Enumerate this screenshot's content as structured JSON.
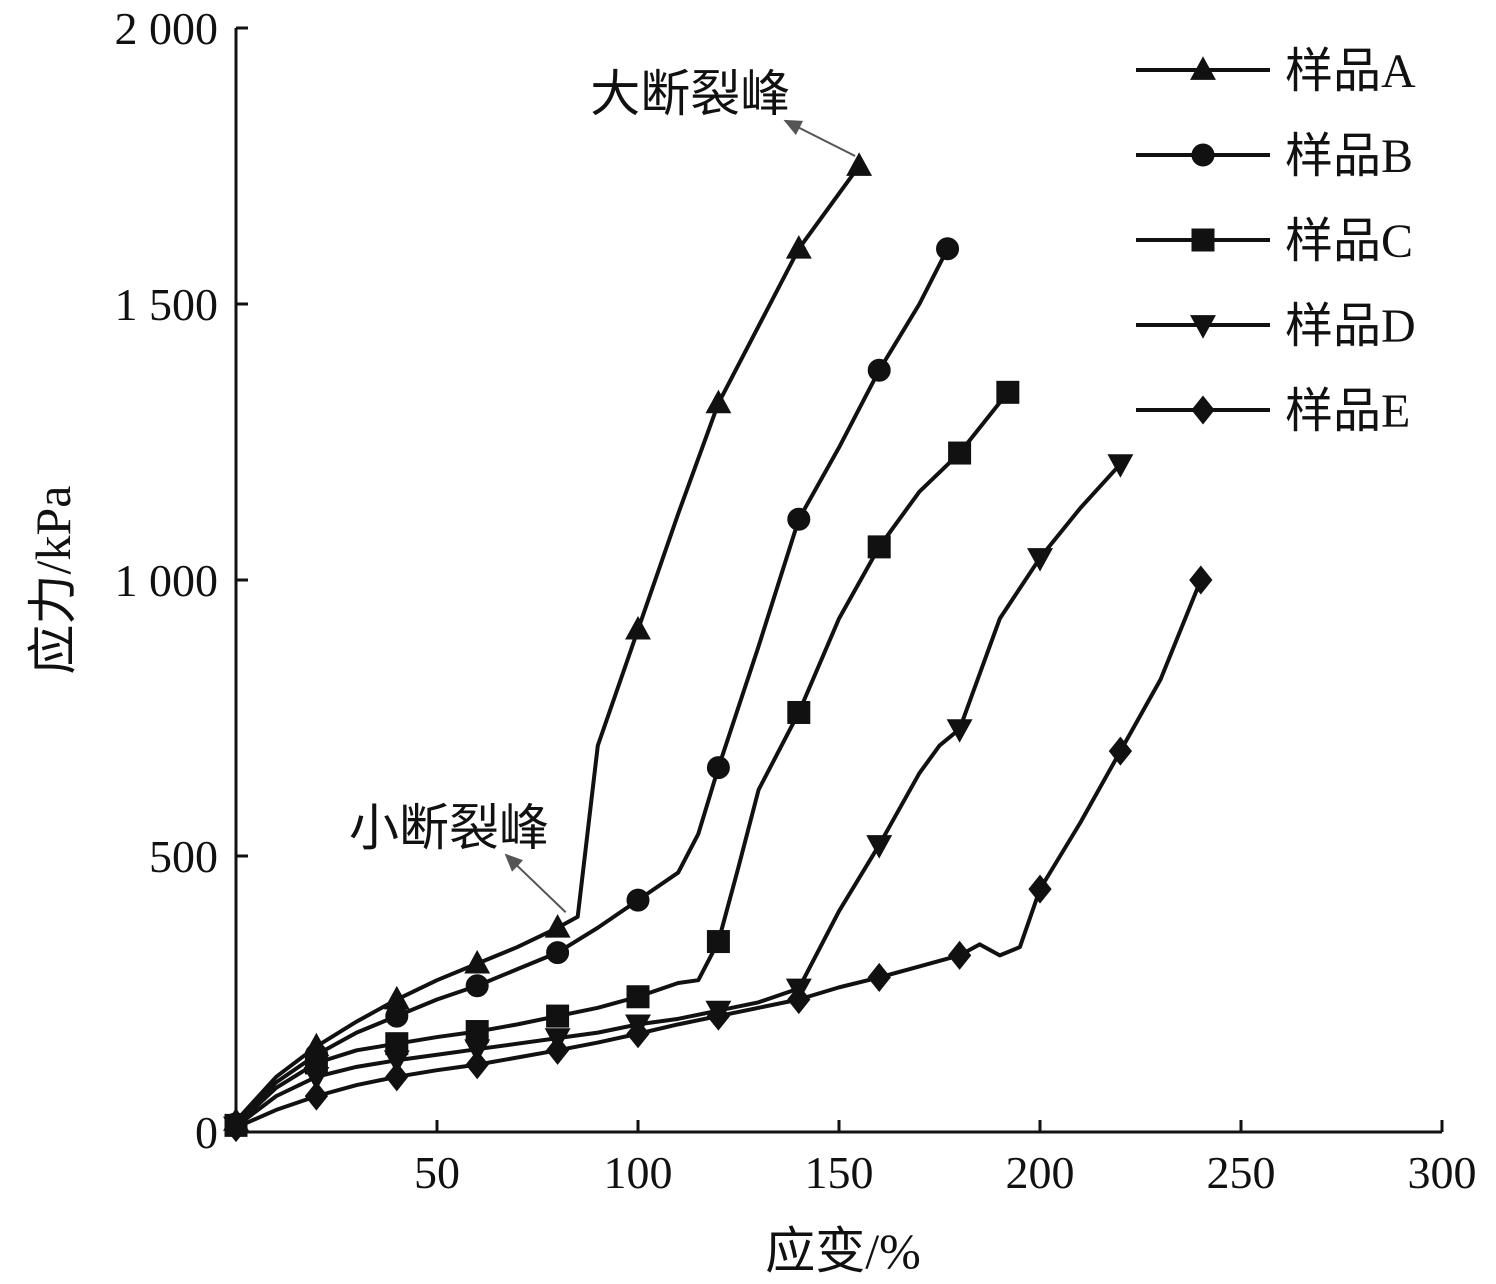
{
  "chart_data": {
    "type": "line",
    "title": "",
    "xlabel": "应变/%",
    "ylabel": "应力/kPa",
    "xlim": [
      0,
      300
    ],
    "ylim": [
      0,
      2000
    ],
    "x_ticks": [
      50,
      100,
      150,
      200,
      250,
      300
    ],
    "x_tick_labels": [
      "50",
      "100",
      "150",
      "200",
      "250",
      "300"
    ],
    "y_ticks": [
      0,
      500,
      1000,
      1500,
      2000
    ],
    "y_tick_labels": [
      "0",
      "500",
      "1 000",
      "1 500",
      "2 000"
    ],
    "grid": false,
    "legend_position": "top-right",
    "series": [
      {
        "name": "样品A",
        "marker": "triangle-up",
        "x": [
          0,
          10,
          20,
          30,
          40,
          50,
          60,
          70,
          80,
          85,
          90,
          100,
          110,
          120,
          130,
          140,
          150,
          155
        ],
        "y": [
          20,
          100,
          155,
          200,
          240,
          275,
          305,
          335,
          370,
          390,
          700,
          910,
          1120,
          1320,
          1460,
          1600,
          1700,
          1750
        ],
        "marker_x": [
          0,
          20,
          40,
          60,
          80,
          100,
          120,
          140,
          155
        ],
        "marker_y": [
          20,
          155,
          240,
          305,
          370,
          910,
          1320,
          1600,
          1750
        ]
      },
      {
        "name": "样品B",
        "marker": "circle",
        "x": [
          0,
          10,
          20,
          30,
          40,
          50,
          60,
          70,
          80,
          90,
          100,
          110,
          115,
          120,
          130,
          140,
          150,
          160,
          170,
          177
        ],
        "y": [
          15,
          90,
          140,
          180,
          210,
          240,
          265,
          295,
          325,
          370,
          420,
          470,
          540,
          660,
          880,
          1110,
          1240,
          1380,
          1500,
          1600
        ],
        "marker_x": [
          0,
          20,
          40,
          60,
          80,
          100,
          120,
          140,
          160,
          177
        ],
        "marker_y": [
          15,
          140,
          210,
          265,
          325,
          420,
          660,
          1110,
          1380,
          1600
        ]
      },
      {
        "name": "样品C",
        "marker": "square",
        "x": [
          0,
          10,
          20,
          30,
          40,
          50,
          60,
          70,
          80,
          90,
          100,
          110,
          115,
          120,
          125,
          130,
          140,
          150,
          160,
          170,
          180,
          192
        ],
        "y": [
          12,
          80,
          125,
          148,
          160,
          172,
          182,
          195,
          210,
          225,
          245,
          270,
          275,
          345,
          480,
          620,
          760,
          930,
          1060,
          1160,
          1230,
          1340
        ],
        "marker_x": [
          0,
          20,
          40,
          60,
          80,
          100,
          120,
          140,
          160,
          180,
          192
        ],
        "marker_y": [
          12,
          125,
          160,
          182,
          210,
          245,
          345,
          760,
          1060,
          1230,
          1340
        ]
      },
      {
        "name": "样品D",
        "marker": "triangle-down",
        "x": [
          0,
          10,
          20,
          30,
          40,
          50,
          60,
          70,
          80,
          90,
          100,
          110,
          120,
          130,
          140,
          150,
          160,
          170,
          175,
          180,
          190,
          200,
          210,
          220
        ],
        "y": [
          10,
          65,
          100,
          118,
          130,
          140,
          150,
          160,
          170,
          180,
          195,
          205,
          220,
          235,
          260,
          400,
          520,
          650,
          700,
          730,
          930,
          1040,
          1130,
          1210
        ],
        "marker_x": [
          0,
          20,
          40,
          60,
          80,
          100,
          120,
          140,
          160,
          180,
          200,
          220
        ],
        "marker_y": [
          10,
          100,
          130,
          150,
          170,
          195,
          220,
          260,
          520,
          730,
          1040,
          1210
        ]
      },
      {
        "name": "样品E",
        "marker": "diamond",
        "x": [
          0,
          10,
          20,
          30,
          40,
          50,
          60,
          70,
          80,
          90,
          100,
          110,
          120,
          130,
          140,
          150,
          160,
          170,
          180,
          185,
          190,
          195,
          200,
          210,
          220,
          230,
          240
        ],
        "y": [
          8,
          40,
          65,
          85,
          100,
          112,
          122,
          135,
          148,
          162,
          178,
          195,
          210,
          225,
          240,
          262,
          280,
          300,
          320,
          340,
          320,
          335,
          440,
          560,
          690,
          820,
          1000
        ],
        "marker_x": [
          0,
          20,
          40,
          60,
          80,
          100,
          120,
          140,
          160,
          180,
          200,
          220,
          240
        ],
        "marker_y": [
          8,
          65,
          100,
          122,
          148,
          178,
          210,
          240,
          280,
          320,
          440,
          690,
          1000
        ]
      }
    ],
    "annotations": [
      {
        "text": "大断裂峰",
        "target_x": 155,
        "target_y": 1750,
        "text_x": 113,
        "text_y": 1850
      },
      {
        "text": "小断裂峰",
        "target_x": 83,
        "target_y": 380,
        "text_x": 53,
        "text_y": 520
      }
    ]
  }
}
